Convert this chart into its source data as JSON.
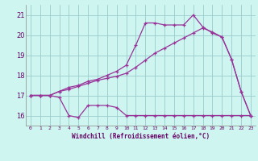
{
  "xlabel": "Windchill (Refroidissement éolien,°C)",
  "bg_color": "#cef5f0",
  "grid_color": "#99cccc",
  "line_color": "#993399",
  "xlim": [
    -0.5,
    23.5
  ],
  "ylim": [
    15.5,
    21.5
  ],
  "yticks": [
    16,
    17,
    18,
    19,
    20,
    21
  ],
  "xtick_labels": [
    "0",
    "1",
    "2",
    "3",
    "4",
    "5",
    "6",
    "7",
    "8",
    "9",
    "10",
    "11",
    "12",
    "13",
    "14",
    "15",
    "16",
    "17",
    "18",
    "19",
    "20",
    "21",
    "22",
    "23"
  ],
  "series1_x": [
    0,
    1,
    2,
    3,
    4,
    5,
    6,
    7,
    8,
    9,
    10,
    11,
    12,
    13,
    14,
    15,
    16,
    17,
    18,
    19,
    20,
    21,
    22,
    23
  ],
  "series1_y": [
    17.0,
    17.0,
    17.0,
    16.9,
    16.0,
    15.9,
    16.5,
    16.5,
    16.5,
    16.4,
    16.0,
    16.0,
    16.0,
    16.0,
    16.0,
    16.0,
    16.0,
    16.0,
    16.0,
    16.0,
    16.0,
    16.0,
    16.0,
    16.0
  ],
  "series2_x": [
    0,
    1,
    2,
    3,
    4,
    5,
    6,
    7,
    8,
    9,
    10,
    11,
    12,
    13,
    14,
    15,
    16,
    17,
    18,
    19,
    20,
    21,
    22,
    23
  ],
  "series2_y": [
    17.0,
    17.0,
    17.0,
    17.2,
    17.4,
    17.5,
    17.7,
    17.8,
    18.0,
    18.2,
    18.5,
    19.5,
    20.6,
    20.6,
    20.5,
    20.5,
    20.5,
    21.0,
    20.4,
    20.1,
    19.9,
    18.8,
    17.2,
    16.0
  ],
  "series3_x": [
    0,
    1,
    2,
    3,
    4,
    5,
    6,
    7,
    8,
    9,
    10,
    11,
    12,
    13,
    14,
    15,
    16,
    17,
    18,
    19,
    20,
    21,
    22,
    23
  ],
  "series3_y": [
    17.0,
    17.0,
    17.0,
    17.2,
    17.3,
    17.45,
    17.6,
    17.75,
    17.85,
    17.95,
    18.1,
    18.4,
    18.75,
    19.1,
    19.35,
    19.6,
    19.85,
    20.1,
    20.35,
    20.15,
    19.9,
    18.8,
    17.2,
    16.0
  ]
}
